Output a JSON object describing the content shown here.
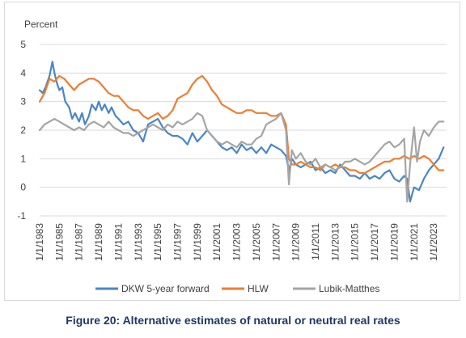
{
  "caption": "Figure 20: Alternative estimates of natural or neutral real rates",
  "chart_data": {
    "type": "line",
    "ylabel": "Percent",
    "ylim": [
      -1,
      5
    ],
    "yticks": [
      -1,
      0,
      1,
      2,
      3,
      4,
      5
    ],
    "xlim": [
      1983,
      2024.3
    ],
    "xtick_labels": [
      "1/1/1983",
      "1/1/1985",
      "1/1/1987",
      "1/1/1989",
      "1/1/1991",
      "1/1/1993",
      "1/1/1995",
      "1/1/1997",
      "1/1/1999",
      "1/1/2001",
      "1/1/2003",
      "1/1/2005",
      "1/1/2007",
      "1/1/2009",
      "1/1/2011",
      "1/1/2013",
      "1/1/2015",
      "1/1/2017",
      "1/1/2019",
      "1/1/2021",
      "1/1/2023"
    ],
    "xtick_years": [
      1983,
      1985,
      1987,
      1989,
      1991,
      1993,
      1995,
      1997,
      1999,
      2001,
      2003,
      2005,
      2007,
      2009,
      2011,
      2013,
      2015,
      2017,
      2019,
      2021,
      2023
    ],
    "legend_position": "bottom",
    "series": [
      {
        "name": "DKW 5-year forward",
        "color": "#4a86c5",
        "x": [
          1983,
          1983.3,
          1983.6,
          1984,
          1984.3,
          1984.5,
          1984.8,
          1985,
          1985.3,
          1985.6,
          1986,
          1986.3,
          1986.6,
          1987,
          1987.3,
          1987.6,
          1988,
          1988.3,
          1988.7,
          1989,
          1989.3,
          1989.6,
          1990,
          1990.3,
          1990.7,
          1991,
          1991.5,
          1992,
          1992.5,
          1993,
          1993.5,
          1994,
          1994.5,
          1995,
          1995.5,
          1996,
          1996.5,
          1997,
          1997.5,
          1998,
          1998.5,
          1999,
          1999.5,
          2000,
          2000.5,
          2001,
          2001.5,
          2002,
          2002.5,
          2003,
          2003.5,
          2004,
          2004.5,
          2005,
          2005.5,
          2006,
          2006.5,
          2007,
          2007.5,
          2008,
          2008.3,
          2008.6,
          2009,
          2009.5,
          2010,
          2010.5,
          2011,
          2011.5,
          2012,
          2012.5,
          2013,
          2013.5,
          2014,
          2014.5,
          2015,
          2015.5,
          2016,
          2016.5,
          2017,
          2017.5,
          2018,
          2018.5,
          2019,
          2019.5,
          2020,
          2020.3,
          2020.6,
          2021,
          2021.5,
          2022,
          2022.5,
          2023,
          2023.5,
          2024
        ],
        "y": [
          3.4,
          3.3,
          3.5,
          3.9,
          4.4,
          4.0,
          3.6,
          3.4,
          3.5,
          3.0,
          2.8,
          2.4,
          2.6,
          2.3,
          2.6,
          2.2,
          2.5,
          2.9,
          2.7,
          3.0,
          2.7,
          2.9,
          2.6,
          2.8,
          2.5,
          2.4,
          2.2,
          2.3,
          2.0,
          1.9,
          1.6,
          2.2,
          2.3,
          2.4,
          2.1,
          1.9,
          1.8,
          1.8,
          1.7,
          1.5,
          1.9,
          1.6,
          1.8,
          2.0,
          1.8,
          1.6,
          1.4,
          1.3,
          1.4,
          1.2,
          1.5,
          1.3,
          1.4,
          1.2,
          1.4,
          1.2,
          1.5,
          1.4,
          1.3,
          1.1,
          0.6,
          1.0,
          0.8,
          0.7,
          0.8,
          0.9,
          0.6,
          0.7,
          0.5,
          0.6,
          0.5,
          0.8,
          0.6,
          0.4,
          0.4,
          0.3,
          0.5,
          0.3,
          0.4,
          0.3,
          0.5,
          0.6,
          0.3,
          0.2,
          0.4,
          0.3,
          -0.5,
          0.0,
          -0.1,
          0.3,
          0.6,
          0.8,
          1.0,
          1.4
        ]
      },
      {
        "name": "HLW",
        "color": "#ed7d31",
        "x": [
          1983,
          1983.5,
          1984,
          1984.5,
          1985,
          1985.5,
          1986,
          1986.5,
          1987,
          1987.5,
          1988,
          1988.5,
          1989,
          1989.5,
          1990,
          1990.5,
          1991,
          1991.5,
          1992,
          1992.5,
          1993,
          1993.5,
          1994,
          1994.5,
          1995,
          1995.5,
          1996,
          1996.5,
          1997,
          1997.5,
          1998,
          1998.5,
          1999,
          1999.5,
          2000,
          2000.5,
          2001,
          2001.5,
          2002,
          2002.5,
          2003,
          2003.5,
          2004,
          2004.5,
          2005,
          2005.5,
          2006,
          2006.5,
          2007,
          2007.5,
          2008,
          2008.3,
          2008.6,
          2009,
          2009.5,
          2010,
          2010.5,
          2011,
          2011.5,
          2012,
          2012.5,
          2013,
          2013.5,
          2014,
          2014.5,
          2015,
          2015.5,
          2016,
          2016.5,
          2017,
          2017.5,
          2018,
          2018.5,
          2019,
          2019.5,
          2020,
          2020.5,
          2021,
          2021.5,
          2022,
          2022.5,
          2023,
          2023.5,
          2024
        ],
        "y": [
          3.0,
          3.3,
          3.8,
          3.7,
          3.9,
          3.8,
          3.6,
          3.4,
          3.6,
          3.7,
          3.8,
          3.8,
          3.7,
          3.5,
          3.3,
          3.2,
          3.2,
          3.0,
          2.8,
          2.7,
          2.7,
          2.5,
          2.4,
          2.5,
          2.6,
          2.4,
          2.5,
          2.7,
          3.1,
          3.2,
          3.3,
          3.6,
          3.8,
          3.9,
          3.7,
          3.4,
          3.2,
          2.9,
          2.8,
          2.7,
          2.6,
          2.6,
          2.7,
          2.7,
          2.6,
          2.6,
          2.6,
          2.5,
          2.5,
          2.6,
          2.2,
          1.0,
          0.8,
          0.8,
          0.9,
          0.8,
          0.7,
          0.7,
          0.6,
          0.8,
          0.7,
          0.8,
          0.7,
          0.7,
          0.6,
          0.6,
          0.5,
          0.5,
          0.6,
          0.7,
          0.8,
          0.9,
          0.9,
          1.0,
          1.0,
          1.1,
          1.0,
          1.1,
          1.0,
          1.1,
          1.0,
          0.8,
          0.6,
          0.6
        ]
      },
      {
        "name": "Lubik-Matthes",
        "color": "#a5a5a5",
        "x": [
          1983,
          1983.5,
          1984,
          1984.5,
          1985,
          1985.5,
          1986,
          1986.5,
          1987,
          1987.5,
          1988,
          1988.5,
          1989,
          1989.5,
          1990,
          1990.5,
          1991,
          1991.5,
          1992,
          1992.5,
          1993,
          1993.5,
          1994,
          1994.5,
          1995,
          1995.5,
          1996,
          1996.5,
          1997,
          1997.5,
          1998,
          1998.5,
          1999,
          1999.5,
          2000,
          2000.5,
          2001,
          2001.5,
          2002,
          2002.5,
          2003,
          2003.5,
          2004,
          2004.5,
          2005,
          2005.5,
          2006,
          2006.5,
          2007,
          2007.5,
          2008,
          2008.3,
          2008.6,
          2009,
          2009.5,
          2010,
          2010.5,
          2011,
          2011.5,
          2012,
          2012.5,
          2013,
          2013.5,
          2014,
          2014.5,
          2015,
          2015.5,
          2016,
          2016.5,
          2017,
          2017.5,
          2018,
          2018.5,
          2019,
          2019.5,
          2020,
          2020.3,
          2020.6,
          2021,
          2021.3,
          2021.6,
          2022,
          2022.5,
          2023,
          2023.5,
          2024
        ],
        "y": [
          2.0,
          2.2,
          2.3,
          2.4,
          2.3,
          2.2,
          2.1,
          2.0,
          2.1,
          2.0,
          2.2,
          2.3,
          2.2,
          2.1,
          2.3,
          2.1,
          2.0,
          1.9,
          1.9,
          1.8,
          1.9,
          2.0,
          2.1,
          2.2,
          2.1,
          2.0,
          2.2,
          2.1,
          2.3,
          2.2,
          2.3,
          2.4,
          2.6,
          2.5,
          2.0,
          1.8,
          1.6,
          1.5,
          1.6,
          1.5,
          1.4,
          1.6,
          1.5,
          1.5,
          1.7,
          1.8,
          2.2,
          2.3,
          2.4,
          2.6,
          2.0,
          0.1,
          1.3,
          1.0,
          1.2,
          0.9,
          0.8,
          1.0,
          0.7,
          0.8,
          0.7,
          0.6,
          0.7,
          0.9,
          0.9,
          1.0,
          0.9,
          0.8,
          0.9,
          1.1,
          1.3,
          1.5,
          1.6,
          1.4,
          1.5,
          1.7,
          -0.5,
          0.8,
          2.1,
          0.9,
          1.6,
          2.0,
          1.8,
          2.1,
          2.3,
          2.3
        ]
      }
    ]
  }
}
